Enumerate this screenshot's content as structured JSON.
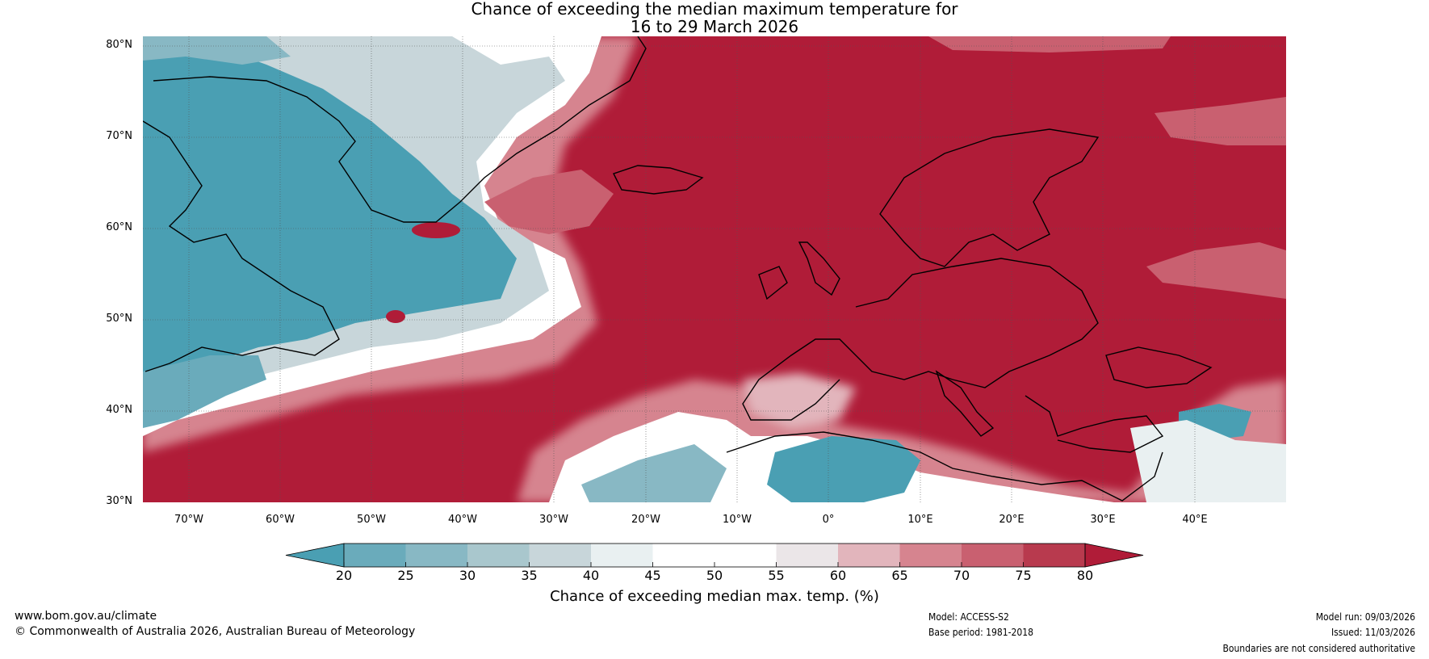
{
  "title": {
    "line1": "Chance of exceeding the median maximum temperature for",
    "line2": "16 to 29 March 2026"
  },
  "map": {
    "lat_labels": [
      "80°N",
      "70°N",
      "60°N",
      "50°N",
      "40°N",
      "30°N"
    ],
    "lon_labels": [
      "70°W",
      "60°W",
      "50°W",
      "40°W",
      "30°W",
      "20°W",
      "10°W",
      "0°",
      "10°E",
      "20°E",
      "30°E",
      "40°E"
    ],
    "lat_range": [
      30,
      81
    ],
    "lon_range": [
      -75,
      50
    ]
  },
  "legend": {
    "label": "Chance of exceeding median max. temp. (%)",
    "ticks": [
      "20",
      "25",
      "30",
      "35",
      "40",
      "45",
      "50",
      "55",
      "60",
      "65",
      "70",
      "75",
      "80"
    ],
    "colors": [
      "#4a9fb3",
      "#6aabbb",
      "#88b8c4",
      "#a9c7cd",
      "#c8d6da",
      "#e9f0f1",
      "#ffffff",
      "#ffffff",
      "#ebe6e8",
      "#e2b5bc",
      "#d6848f",
      "#c96070",
      "#b83a4e",
      "#b01c38"
    ],
    "under_color": "#4a9fb3",
    "over_color": "#b01c38"
  },
  "footer": {
    "url": "www.bom.gov.au/climate",
    "copyright": "© Commonwealth of Australia 2026, Australian Bureau of Meteorology",
    "model": "Model: ACCESS-S2",
    "base_period": "Base period: 1981-2018",
    "model_run": "Model run: 09/03/2026",
    "issued": "Issued: 11/03/2026",
    "disclaimer": "Boundaries are not considered authoritative"
  },
  "colors": {
    "cool": "#4a9fb3",
    "warm": "#b01c38",
    "neutral": "#ffffff"
  }
}
